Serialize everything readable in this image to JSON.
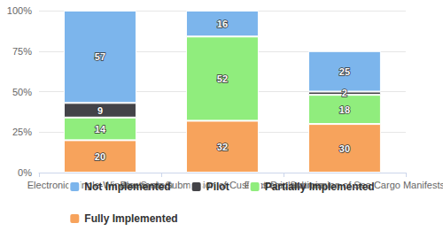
{
  "chart_data": {
    "type": "bar",
    "categories": [
      "Electronic Single-Window System",
      "Electronic Submission of Customs Declarations",
      "Electronic Submission of Sea Cargo Manifests"
    ],
    "series": [
      {
        "name": "Not Implemented",
        "color": "#7cb5ec",
        "values": [
          57,
          16,
          25
        ]
      },
      {
        "name": "Pilot",
        "color": "#434348",
        "values": [
          9,
          null,
          2
        ]
      },
      {
        "name": "Partially Implemented",
        "color": "#90ed7d",
        "values": [
          14,
          52,
          18
        ]
      },
      {
        "name": "Fully Implemented",
        "color": "#f7a35c",
        "values": [
          20,
          32,
          30
        ]
      }
    ],
    "ylim": [
      0,
      100
    ],
    "yticks": [
      {
        "value": 0,
        "label": "0%"
      },
      {
        "value": 25,
        "label": "25%"
      },
      {
        "value": 50,
        "label": "50%"
      },
      {
        "value": 75,
        "label": "75%"
      },
      {
        "value": 100,
        "label": "100%"
      }
    ],
    "stacked": true,
    "data_labels": true,
    "grid": true,
    "legend": "bottom"
  }
}
